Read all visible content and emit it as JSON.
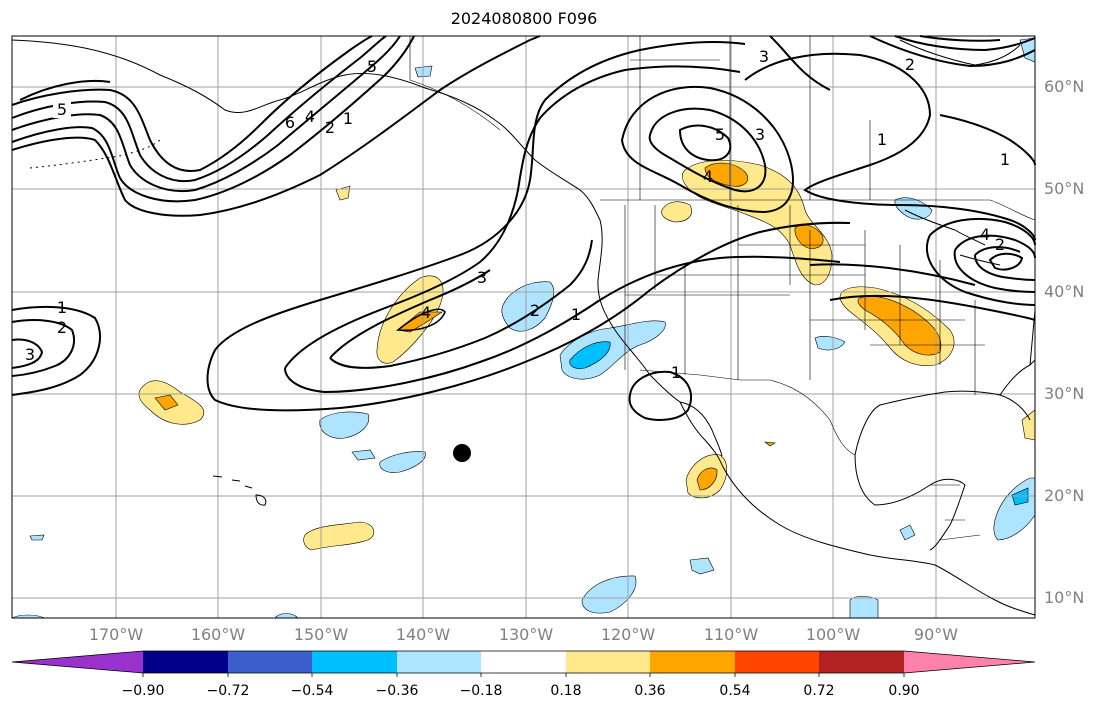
{
  "title": "2024080800 F096",
  "map": {
    "lat_labels": [
      "60°N",
      "50°N",
      "40°N",
      "30°N",
      "20°N",
      "10°N"
    ],
    "lon_labels": [
      "170°W",
      "160°W",
      "150°W",
      "140°W",
      "130°W",
      "120°W",
      "110°W",
      "100°W",
      "90°W"
    ],
    "contour_labels": [
      "5",
      "6",
      "4",
      "2",
      "1",
      "3",
      "2",
      "5",
      "3",
      "4",
      "1",
      "2",
      "3",
      "4",
      "2",
      "1",
      "1",
      "2",
      "3",
      "4",
      "1",
      "5",
      "1"
    ],
    "marker": "black-dot"
  },
  "colorbar": {
    "ticks": [
      "−0.90",
      "−0.72",
      "−0.54",
      "−0.36",
      "−0.18",
      "0.18",
      "0.36",
      "0.54",
      "0.72",
      "0.90"
    ],
    "colors": [
      "#9932cc",
      "#00008b",
      "#3a5fcd",
      "#00bfff",
      "#aee4ff",
      "#ffffff",
      "#ffe98c",
      "#ffa500",
      "#ff4500",
      "#b22222",
      "#ff82ab"
    ]
  }
}
